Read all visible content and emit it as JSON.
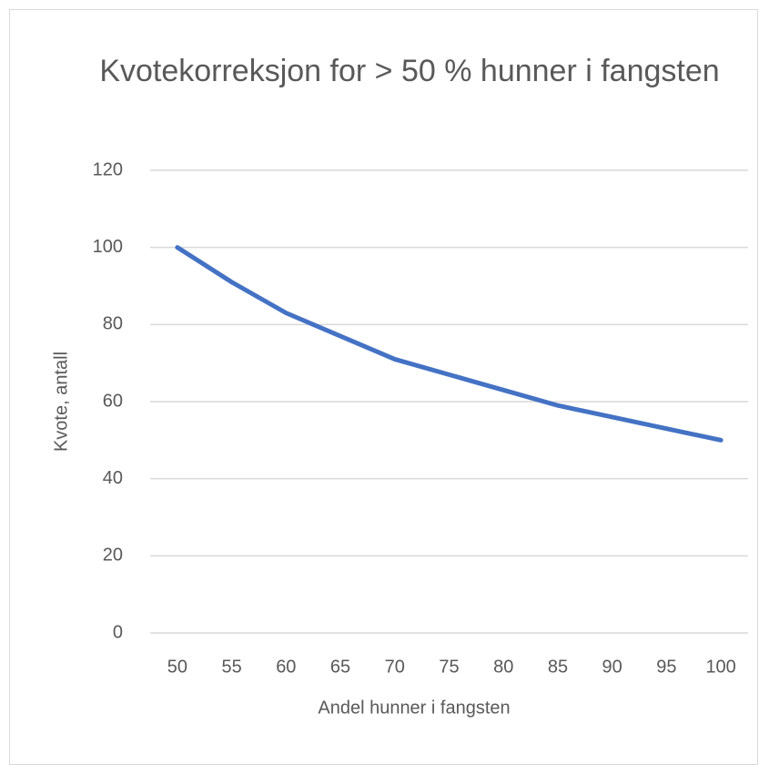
{
  "chart_data": {
    "type": "line",
    "title": "Kvotekorreksjon for > 50 % hunner i fangsten",
    "x_label": "Andel hunner i fangsten",
    "y_label": "Kvote, antall",
    "categories": [
      "50",
      "55",
      "60",
      "65",
      "70",
      "75",
      "80",
      "85",
      "90",
      "95",
      "100"
    ],
    "series": [
      {
        "name": "Kvote",
        "color": "#4472c4",
        "values": [
          100,
          91,
          83,
          77,
          71,
          67,
          63,
          59,
          56,
          53,
          50
        ]
      }
    ],
    "ylim": [
      0,
      120
    ],
    "yticks": [
      0,
      20,
      40,
      60,
      80,
      100,
      120
    ],
    "grid": true
  }
}
